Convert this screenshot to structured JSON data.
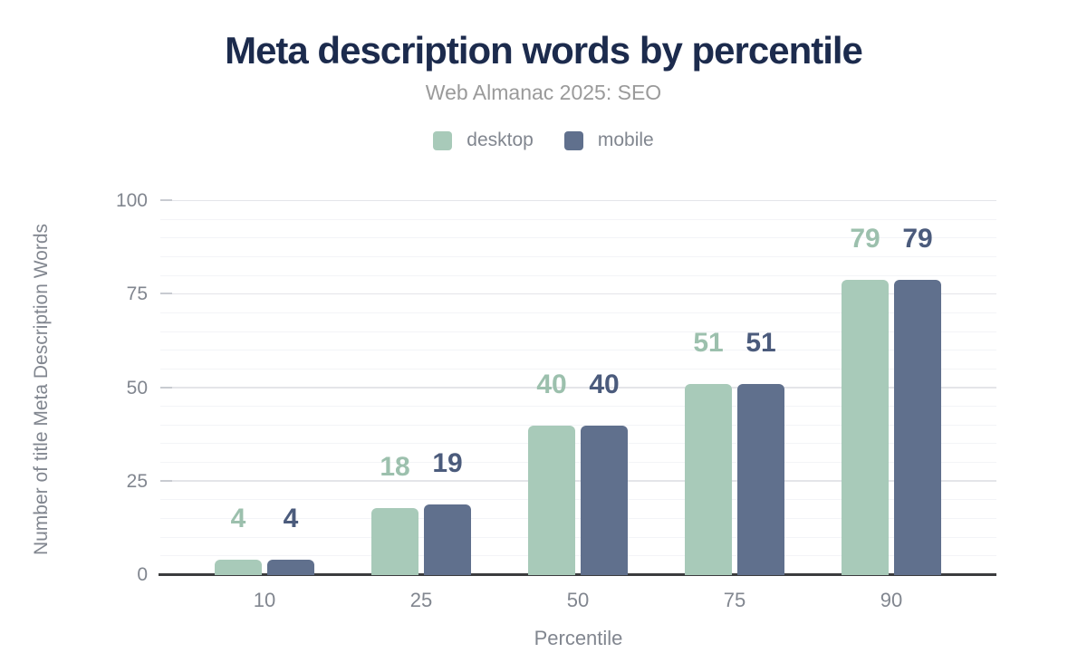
{
  "chart_data": {
    "type": "bar",
    "title": "Meta description words by percentile",
    "subtitle": "Web Almanac 2025: SEO",
    "categories": [
      "10",
      "25",
      "50",
      "75",
      "90"
    ],
    "series": [
      {
        "name": "desktop",
        "values": [
          4,
          18,
          40,
          51,
          79
        ],
        "bar_color": "#a8cab9",
        "label_color": "#9cc0ad"
      },
      {
        "name": "mobile",
        "values": [
          4,
          19,
          40,
          51,
          79
        ],
        "bar_color": "#60708d",
        "label_color": "#4b5b7c"
      }
    ],
    "xlabel": "Percentile",
    "ylabel": "Number of title Meta Description Words",
    "ylim": [
      0,
      100
    ],
    "y_ticks": [
      0,
      25,
      50,
      75,
      100
    ],
    "minor_grid_step": 5,
    "grid": "on",
    "legend_position": "top",
    "value_labels": "above-bars",
    "colors": {
      "title": "#1c2b4d",
      "subtitle": "#9a9a9a",
      "axis_text": "#81868f",
      "major_grid": "#e4e5e9",
      "minor_grid": "#f3f4f7",
      "tick": "#c8cbd1",
      "baseline": "#3b3c3e"
    }
  }
}
